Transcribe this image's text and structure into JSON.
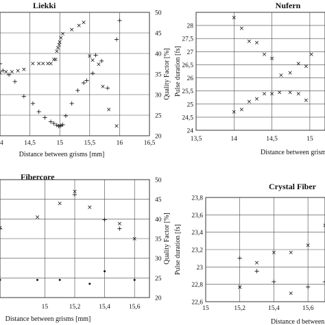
{
  "chart_data": [
    {
      "panel": "liekki",
      "type": "scatter",
      "title": "Liekki",
      "xlabel": "Distance between grisms [mm]",
      "ylabel": "",
      "y2label": "Quality Factor [%]",
      "xlim": [
        14,
        16.5
      ],
      "xticks": [
        "14",
        "14,5",
        "15",
        "15,5",
        "16",
        "16,5"
      ],
      "y2lim": [
        20,
        50
      ],
      "y2ticks": [
        "20",
        "25",
        "30",
        "35",
        "40",
        "45",
        "50"
      ],
      "series": [
        {
          "marker": "x",
          "axis": "right",
          "x": [
            14.0,
            14.1,
            14.2,
            14.3,
            14.4,
            14.55,
            14.65,
            14.72,
            14.8,
            14.85,
            14.9,
            14.93,
            14.95,
            14.97,
            14.99,
            15.0,
            15.02,
            15.05,
            15.2,
            15.32,
            15.4,
            15.5,
            15.55,
            15.65,
            15.72,
            15.82,
            15.95
          ],
          "y": [
            35.3,
            35.6,
            35.6,
            35.8,
            36.2,
            37.6,
            37.6,
            37.6,
            37.6,
            37.6,
            38.6,
            38.6,
            40.6,
            41.4,
            42.2,
            42.8,
            43.8,
            44.8,
            45.8,
            46.8,
            47.6,
            39.4,
            38.4,
            37.4,
            32.0,
            26.4,
            22.4
          ]
        },
        {
          "marker": "+",
          "axis": "right",
          "x": [
            14.0,
            14.05,
            14.15,
            14.25,
            14.4,
            14.55,
            14.65,
            14.75,
            14.85,
            14.9,
            14.95,
            14.98,
            15.0,
            15.02,
            15.05,
            15.1,
            15.2,
            15.3,
            15.4,
            15.45,
            15.55,
            15.6,
            15.7,
            15.8,
            15.95,
            16.0
          ],
          "y": [
            37.5,
            35.8,
            34.8,
            33.2,
            29.6,
            27.8,
            25.8,
            24.4,
            23.4,
            23.0,
            22.6,
            22.3,
            22.3,
            22.5,
            22.7,
            24.8,
            27.8,
            31.0,
            32.8,
            33.4,
            35.2,
            39.6,
            38.2,
            31.6,
            43.4,
            48.0
          ]
        }
      ]
    },
    {
      "panel": "nufern",
      "type": "scatter",
      "title": "Nufern",
      "xlabel": "Distance between grisms",
      "ylabel": "Pulse duration [fs]",
      "xlim": [
        13.5,
        15.2
      ],
      "xticks": [
        "13,5",
        "14",
        "14,5",
        "15"
      ],
      "ylim": [
        24,
        28.5
      ],
      "yticks": [
        "24",
        "24,5",
        "25",
        "25,5",
        "26",
        "26,5",
        "27",
        "27,5",
        "28"
      ],
      "series": [
        {
          "marker": "x",
          "x": [
            14.0,
            14.1,
            14.2,
            14.3,
            14.4,
            14.5,
            14.62,
            14.74,
            14.85,
            14.95,
            15.02,
            14.0,
            14.1,
            14.2,
            14.3,
            14.4,
            14.5,
            14.6,
            14.74,
            14.85,
            14.95
          ],
          "y": [
            28.3,
            27.9,
            27.4,
            27.35,
            26.9,
            26.75,
            26.1,
            26.2,
            26.55,
            26.45,
            26.9,
            24.7,
            24.8,
            25.1,
            25.2,
            25.4,
            25.4,
            25.45,
            25.45,
            25.4,
            25.15
          ]
        }
      ]
    },
    {
      "panel": "fibercore",
      "type": "scatter",
      "title": "Fibercore",
      "xlabel": "Distance between grisms [mm]",
      "ylabel": "",
      "y2label": "Quality Factor [%]",
      "xlim": [
        14.7,
        15.7
      ],
      "xticks": [
        "15",
        "15,2",
        "15,4",
        "15,6"
      ],
      "y2lim": [
        20,
        50
      ],
      "y2ticks": [
        "20",
        "25",
        "30",
        "35",
        "40",
        "45",
        "50"
      ],
      "series": [
        {
          "marker": "x",
          "axis": "right",
          "x": [
            14.7,
            14.95,
            15.1,
            15.2,
            15.3,
            15.5,
            15.6
          ],
          "y": [
            37.8,
            40.5,
            44.0,
            47.0,
            43.0,
            38.8,
            35.0
          ]
        },
        {
          "marker": "+",
          "axis": "right",
          "x": [
            14.7,
            15.2,
            15.4,
            15.5
          ],
          "y": [
            37.5,
            46.2,
            39.8,
            37.5
          ]
        },
        {
          "marker": "dot",
          "axis": "right",
          "x": [
            14.7,
            14.95,
            15.1,
            15.3,
            15.4,
            15.6
          ],
          "y": [
            24.5,
            24.5,
            24.5,
            23.5,
            26.7,
            24.5
          ]
        }
      ]
    },
    {
      "panel": "crystal",
      "type": "scatter",
      "title": "Crystal Fiber",
      "xlabel": "Distance d between",
      "ylabel": "Pulse duration [fs]",
      "xlim": [
        15,
        15.7
      ],
      "xticks": [
        "15",
        "15,2",
        "15,4",
        "15,6"
      ],
      "ylim": [
        22.6,
        23.8
      ],
      "yticks": [
        "22,6",
        "22,8",
        "23",
        "23,2",
        "23,4",
        "23,6",
        "23,8"
      ],
      "series": [
        {
          "marker": "x",
          "x": [
            15.2,
            15.3,
            15.4,
            15.5,
            15.6,
            15.7,
            15.2,
            15.5
          ],
          "y": [
            22.77,
            23.05,
            23.17,
            23.17,
            23.25,
            23.48,
            22.77,
            22.7
          ]
        },
        {
          "marker": "+",
          "x": [
            15.2,
            15.3,
            15.4,
            15.6,
            15.7
          ],
          "y": [
            23.1,
            22.95,
            22.83,
            22.77,
            22.83
          ]
        }
      ]
    }
  ]
}
